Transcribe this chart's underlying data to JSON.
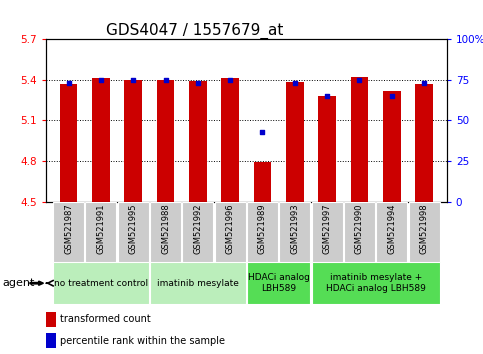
{
  "title": "GDS4047 / 1557679_at",
  "samples": [
    "GSM521987",
    "GSM521991",
    "GSM521995",
    "GSM521988",
    "GSM521992",
    "GSM521996",
    "GSM521989",
    "GSM521993",
    "GSM521997",
    "GSM521990",
    "GSM521994",
    "GSM521998"
  ],
  "transformed_count": [
    5.37,
    5.41,
    5.4,
    5.4,
    5.39,
    5.41,
    4.79,
    5.38,
    5.28,
    5.42,
    5.32,
    5.37
  ],
  "percentile_rank": [
    73,
    75,
    75,
    75,
    73,
    75,
    43,
    73,
    65,
    75,
    65,
    73
  ],
  "ylim_left": [
    4.5,
    5.7
  ],
  "ylim_right": [
    0,
    100
  ],
  "yticks_left": [
    4.5,
    4.8,
    5.1,
    5.4,
    5.7
  ],
  "yticks_right": [
    0,
    25,
    50,
    75,
    100
  ],
  "ytick_labels_left": [
    "4.5",
    "4.8",
    "5.1",
    "5.4",
    "5.7"
  ],
  "ytick_labels_right": [
    "0",
    "25",
    "50",
    "75",
    "100%"
  ],
  "groups": [
    {
      "label": "no treatment control",
      "indices": [
        0,
        1,
        2
      ],
      "color": "#bbeebb"
    },
    {
      "label": "imatinib mesylate",
      "indices": [
        3,
        4,
        5
      ],
      "color": "#bbeebb"
    },
    {
      "label": "HDACi analog\nLBH589",
      "indices": [
        6,
        7
      ],
      "color": "#55dd55"
    },
    {
      "label": "imatinib mesylate +\nHDACi analog LBH589",
      "indices": [
        8,
        9,
        10,
        11
      ],
      "color": "#55dd55"
    }
  ],
  "bar_color": "#cc0000",
  "dot_color": "#0000cc",
  "bar_width": 0.55,
  "title_fontsize": 11,
  "tick_fontsize": 7.5,
  "sample_fontsize": 6,
  "group_fontsize": 6.5,
  "legend_fontsize": 7,
  "agent_label": "agent",
  "legend_transformed": "transformed count",
  "legend_percentile": "percentile rank within the sample"
}
